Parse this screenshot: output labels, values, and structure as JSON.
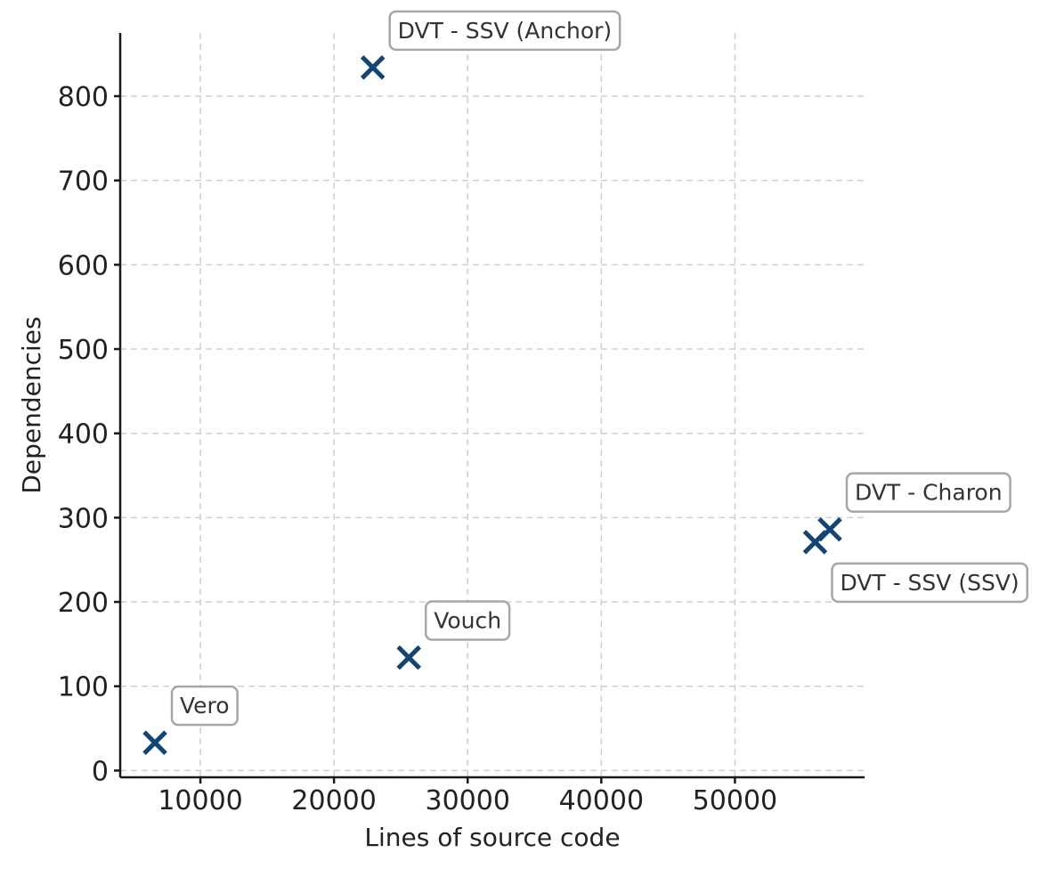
{
  "chart_data": {
    "type": "scatter",
    "title": "",
    "xlabel": "Lines of source code",
    "ylabel": "Dependencies",
    "xlim": [
      4000,
      59700
    ],
    "ylim": [
      -8,
      875
    ],
    "x_ticks": [
      10000,
      20000,
      30000,
      40000,
      50000
    ],
    "y_ticks": [
      0,
      100,
      200,
      300,
      400,
      500,
      600,
      700,
      800
    ],
    "grid": true,
    "marker": "x",
    "marker_color": "#124573",
    "points": [
      {
        "label": "Vero",
        "x": 6600,
        "y": 33
      },
      {
        "label": "Vouch",
        "x": 25600,
        "y": 134
      },
      {
        "label": "DVT - SSV (Anchor)",
        "x": 22900,
        "y": 834
      },
      {
        "label": "DVT - SSV (SSV)",
        "x": 56000,
        "y": 271
      },
      {
        "label": "DVT - Charon",
        "x": 57100,
        "y": 286
      }
    ]
  }
}
